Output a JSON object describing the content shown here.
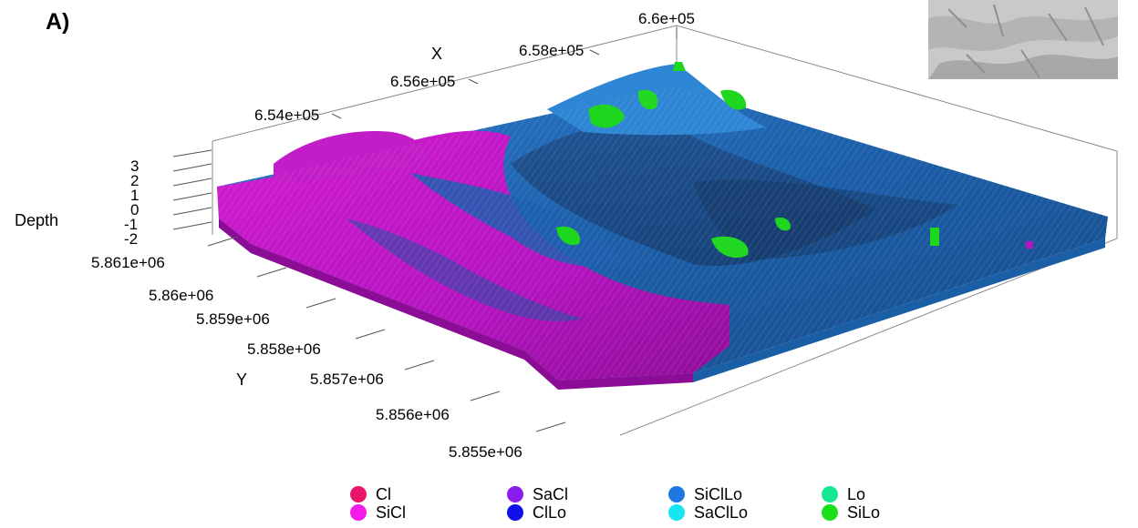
{
  "panel_label": "A)",
  "chart_data": {
    "type": "surface3d",
    "title": "",
    "xlabel": "X",
    "ylabel": "Y",
    "zlabel": "Depth",
    "x_ticks": [
      "6.54e+05",
      "6.56e+05",
      "6.58e+05",
      "6.6e+05"
    ],
    "y_ticks": [
      "5.861e+06",
      "5.86e+06",
      "5.859e+06",
      "5.858e+06",
      "5.857e+06",
      "5.856e+06",
      "5.855e+06"
    ],
    "z_ticks": [
      "3",
      "2",
      "1",
      "0",
      "-1",
      "-2"
    ],
    "xlim": [
      653000,
      660000
    ],
    "ylim": [
      5855000,
      5861000
    ],
    "zlim": [
      -2,
      3
    ],
    "legend_position": "bottom",
    "categories": [
      {
        "name": "Cl",
        "color": "#e8156b"
      },
      {
        "name": "SiCl",
        "color": "#f21bea"
      },
      {
        "name": "SaCl",
        "color": "#8a1cf0"
      },
      {
        "name": "ClLo",
        "color": "#1010e8"
      },
      {
        "name": "SiClLo",
        "color": "#1f78e0"
      },
      {
        "name": "SaClLo",
        "color": "#19e5f2"
      },
      {
        "name": "Lo",
        "color": "#17e88f"
      },
      {
        "name": "SiLo",
        "color": "#1bdf1b"
      }
    ]
  }
}
